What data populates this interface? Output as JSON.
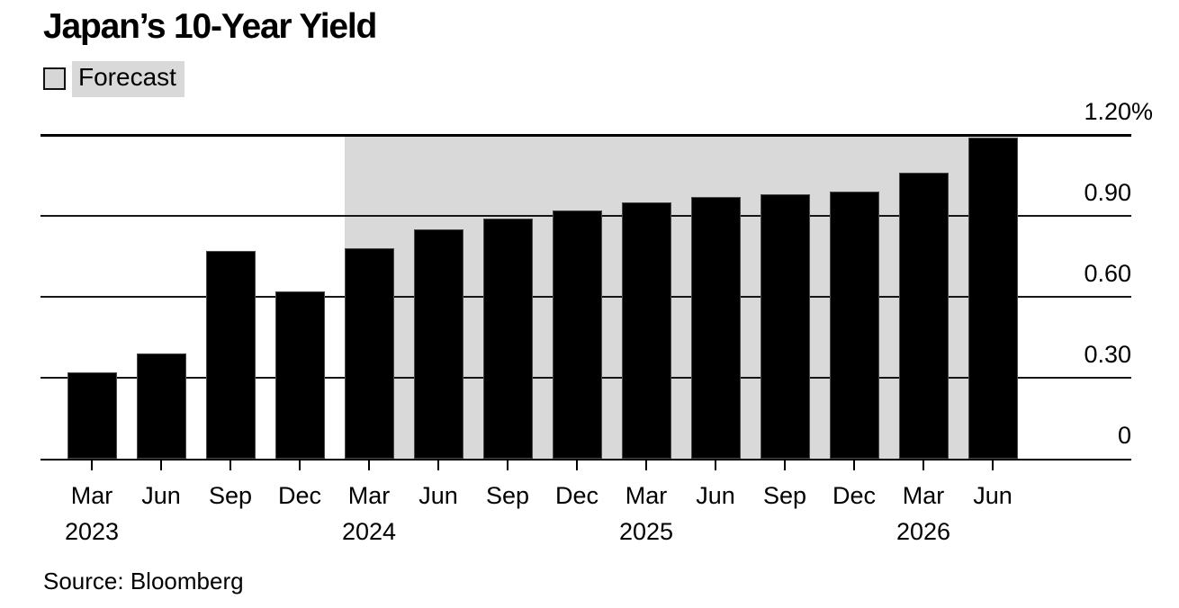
{
  "title": "Japan’s 10-Year Yield",
  "legend": {
    "label": "Forecast"
  },
  "source": "Source: Bloomberg",
  "colors": {
    "bar": "#000000",
    "forecast_background": "#d9d9d9",
    "gridline": "#161616",
    "text": "#000000",
    "background": "#ffffff"
  },
  "chart_data": {
    "type": "bar",
    "title": "Japan’s 10-Year Yield",
    "ylabel": "",
    "xlabel": "",
    "unit": "%",
    "categories": [
      "Mar 2023",
      "Jun 2023",
      "Sep 2023",
      "Dec 2023",
      "Mar 2024",
      "Jun 2024",
      "Sep 2024",
      "Dec 2024",
      "Mar 2025",
      "Jun 2025",
      "Sep 2025",
      "Dec 2025",
      "Mar 2026",
      "Jun 2026"
    ],
    "months": [
      "Mar",
      "Jun",
      "Sep",
      "Dec",
      "Mar",
      "Jun",
      "Sep",
      "Dec",
      "Mar",
      "Jun",
      "Sep",
      "Dec",
      "Mar",
      "Jun"
    ],
    "year_labels": [
      {
        "index": 0,
        "label": "2023"
      },
      {
        "index": 4,
        "label": "2024"
      },
      {
        "index": 8,
        "label": "2025"
      },
      {
        "index": 12,
        "label": "2026"
      }
    ],
    "values": [
      0.32,
      0.39,
      0.77,
      0.62,
      0.78,
      0.85,
      0.89,
      0.92,
      0.95,
      0.97,
      0.98,
      0.99,
      1.06,
      1.19
    ],
    "ylim": [
      0,
      1.2
    ],
    "yticks": [
      {
        "value": 1.2,
        "label": "1.20%"
      },
      {
        "value": 0.9,
        "label": "0.90"
      },
      {
        "value": 0.6,
        "label": "0.60"
      },
      {
        "value": 0.3,
        "label": "0.30"
      },
      {
        "value": 0,
        "label": "0"
      }
    ],
    "grid": true,
    "legend_position": "top-left",
    "legend_entries": [
      "Forecast"
    ],
    "forecast": {
      "label": "Forecast",
      "start_index": 4,
      "end_index": 13
    },
    "source": "Source: Bloomberg"
  }
}
